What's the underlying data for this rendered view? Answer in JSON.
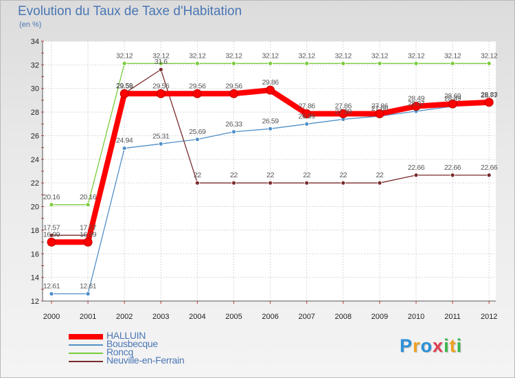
{
  "title": "Evolution du Taux de Taxe d'Habitation",
  "subtitle": "(en %)",
  "logo": {
    "letters": [
      "P",
      "r",
      "o",
      "x",
      "i",
      "t",
      "i"
    ],
    "colors": [
      "#2a8fd8",
      "#f0a020",
      "#2a8fd8",
      "#e04050",
      "#3ab54a",
      "#f0a020",
      "#3ab54a"
    ]
  },
  "chart_data": {
    "type": "line",
    "title": "Evolution du Taux de Taxe d'Habitation",
    "subtitle": "(en %)",
    "x": [
      "2000",
      "2001",
      "2002",
      "2003",
      "2004",
      "2005",
      "2006",
      "2007",
      "2008",
      "2009",
      "2010",
      "2011",
      "2012"
    ],
    "ylim": [
      12,
      34
    ],
    "yticks": [
      12,
      14,
      16,
      18,
      20,
      22,
      24,
      26,
      28,
      30,
      32,
      34
    ],
    "grid": true,
    "legend_position": "bottom-left",
    "series": [
      {
        "name": "HALLUIN",
        "color": "#ff0000",
        "emphasis": true,
        "values": [
          16.99,
          16.99,
          29.56,
          29.56,
          29.56,
          29.56,
          29.86,
          27.86,
          27.86,
          27.86,
          28.49,
          28.69,
          28.83
        ],
        "labels": [
          "16.99",
          "16.99",
          "29.56",
          "29.56",
          "29.56",
          "29.56",
          "29.86",
          "27.86",
          "27.86",
          "27.86",
          "28.49",
          "28.69",
          "28.83"
        ]
      },
      {
        "name": "Bousbecque",
        "color": "#4f8fc8",
        "values": [
          12.61,
          12.61,
          24.94,
          25.31,
          25.69,
          26.33,
          26.59,
          26.99,
          27.39,
          27.66,
          28.07,
          28.49,
          28.77
        ],
        "labels": [
          "12.61",
          "12.61",
          "24.94",
          "25.31",
          "25.69",
          "26.33",
          "26.59",
          "26.99",
          "27.39",
          "27.66",
          "28.07",
          "28.49",
          "28.77"
        ]
      },
      {
        "name": "Roncq",
        "color": "#7acc3a",
        "values": [
          20.16,
          20.16,
          32.12,
          32.12,
          32.12,
          32.12,
          32.12,
          32.12,
          32.12,
          32.12,
          32.12,
          32.12,
          32.12
        ],
        "labels": [
          "20.16",
          "20.16",
          "32.12",
          "32.12",
          "32.12",
          "32.12",
          "32.12",
          "32.12",
          "32.12",
          "32.12",
          "32.12",
          "32.12",
          "32.12"
        ]
      },
      {
        "name": "Neuville-en-Ferrain",
        "color": "#7a2a2a",
        "values": [
          17.57,
          17.57,
          29.59,
          31.6,
          22,
          22,
          22,
          22,
          22,
          22,
          22.66,
          22.66,
          22.66
        ],
        "labels": [
          "17.57",
          "17.57",
          "29.59",
          "31.6",
          "22",
          "22",
          "22",
          "22",
          "22",
          "22",
          "22.66",
          "22.66",
          "22.66"
        ]
      }
    ]
  }
}
